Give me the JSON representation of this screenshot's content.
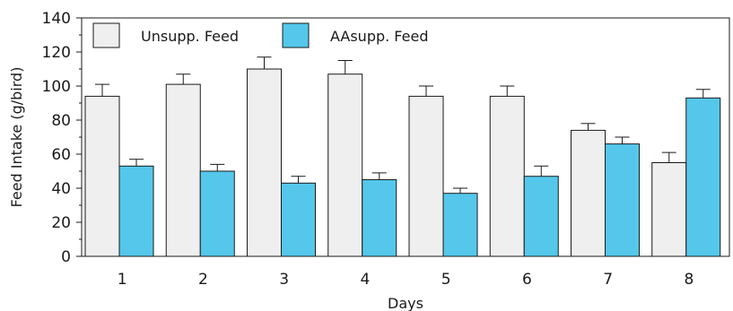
{
  "chart_data": {
    "type": "bar",
    "categories": [
      "1",
      "2",
      "3",
      "4",
      "5",
      "6",
      "7",
      "8"
    ],
    "series": [
      {
        "name": "Unsupp. Feed",
        "color": "#efefef",
        "values": [
          94,
          101,
          110,
          107,
          94,
          94,
          74,
          55
        ],
        "errors": [
          7,
          6,
          7,
          8,
          6,
          6,
          4,
          6
        ]
      },
      {
        "name": "AAsupp. Feed",
        "color": "#55c7eb",
        "values": [
          53,
          50,
          43,
          45,
          37,
          47,
          66,
          93
        ],
        "errors": [
          4,
          4,
          4,
          4,
          3,
          6,
          4,
          5
        ]
      }
    ],
    "xlabel": "Days",
    "ylabel": "Feed Intake (g/bird)",
    "ylim": [
      0,
      140
    ],
    "yticks": [
      0,
      20,
      40,
      60,
      80,
      100,
      120,
      140
    ],
    "grid": false,
    "legend_position": "top-left",
    "error_bars": true
  }
}
